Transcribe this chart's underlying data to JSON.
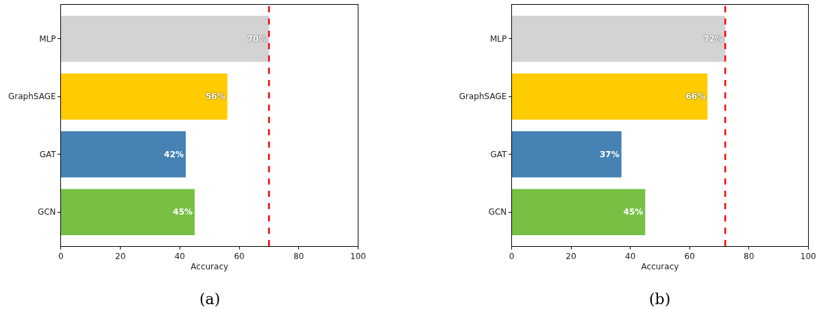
{
  "chart_data": [
    {
      "type": "bar",
      "orientation": "horizontal",
      "categories": [
        "MLP",
        "GraphSAGE",
        "GAT",
        "GCN"
      ],
      "values": [
        70,
        56,
        42,
        45
      ],
      "colors": [
        "#d3d3d3",
        "#ffcc00",
        "#4682b4",
        "#77c043"
      ],
      "value_labels": [
        "70%",
        "56%",
        "42%",
        "45%"
      ],
      "xlim": [
        0,
        100
      ],
      "xticks": [
        0,
        20,
        40,
        60,
        80,
        100
      ],
      "xlabel": "Accuracy",
      "ref_lines": [
        {
          "axis": "x",
          "value": 70,
          "color": "#ff0000",
          "line_style": "dashed"
        }
      ],
      "annotations": [
        "(a)"
      ]
    },
    {
      "type": "bar",
      "orientation": "horizontal",
      "categories": [
        "MLP",
        "GraphSAGE",
        "GAT",
        "GCN"
      ],
      "values": [
        72,
        66,
        37,
        45
      ],
      "colors": [
        "#d3d3d3",
        "#ffcc00",
        "#4682b4",
        "#77c043"
      ],
      "value_labels": [
        "72%",
        "66%",
        "37%",
        "45%"
      ],
      "xlim": [
        0,
        100
      ],
      "xticks": [
        0,
        20,
        40,
        60,
        80,
        100
      ],
      "xlabel": "Accuracy",
      "ref_lines": [
        {
          "axis": "x",
          "value": 72,
          "color": "#ff0000",
          "line_style": "dashed"
        }
      ],
      "annotations": [
        "(b)"
      ]
    }
  ]
}
